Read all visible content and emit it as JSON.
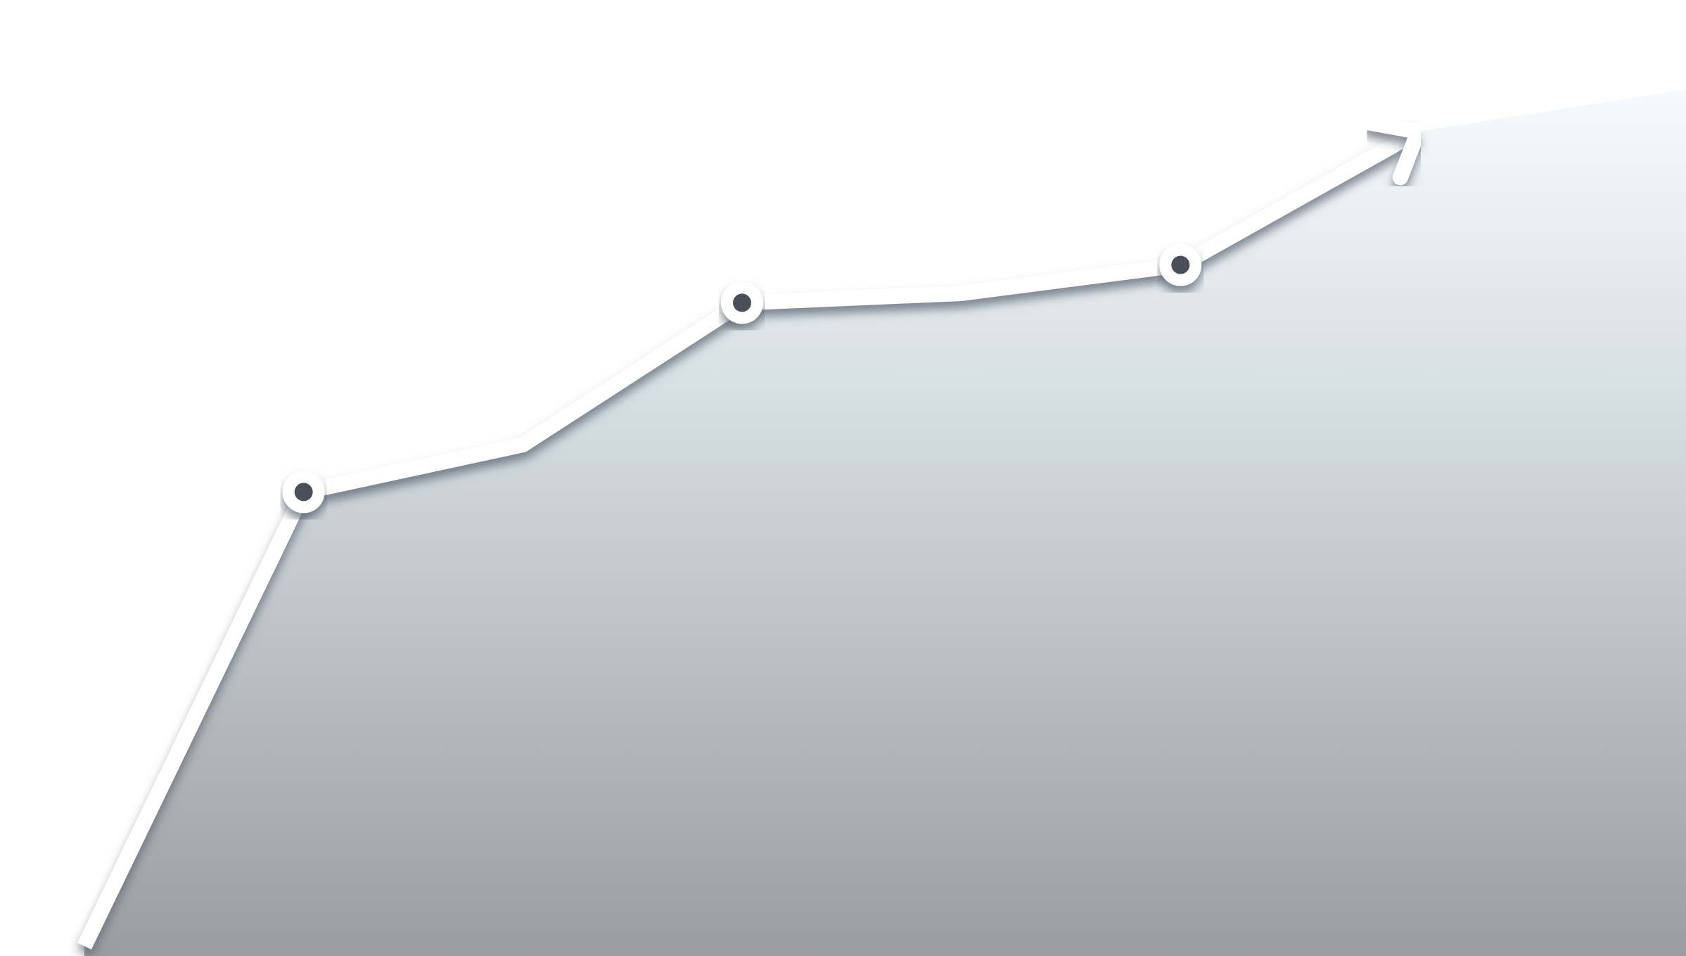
{
  "chart_data": {
    "type": "area",
    "title": "",
    "xlabel": "",
    "ylabel": "",
    "x": [
      0,
      1,
      2,
      3,
      4,
      5,
      6
    ],
    "values": [
      0,
      48,
      53,
      68,
      69,
      72,
      85
    ],
    "marked_points": [
      1,
      3,
      5
    ],
    "ends_with_arrow": true,
    "xlim": [
      0,
      6
    ],
    "ylim": [
      0,
      100
    ],
    "grid": false,
    "legend": "none"
  },
  "colors": {
    "background": "#ffffff",
    "line": "#ffffff",
    "marker_fill": "#4a4f5a",
    "area_top": "#f7fafc",
    "area_mid": "#d6dfe4",
    "area_bottom": "#9b9ca0",
    "shadow": "#5c6470"
  }
}
